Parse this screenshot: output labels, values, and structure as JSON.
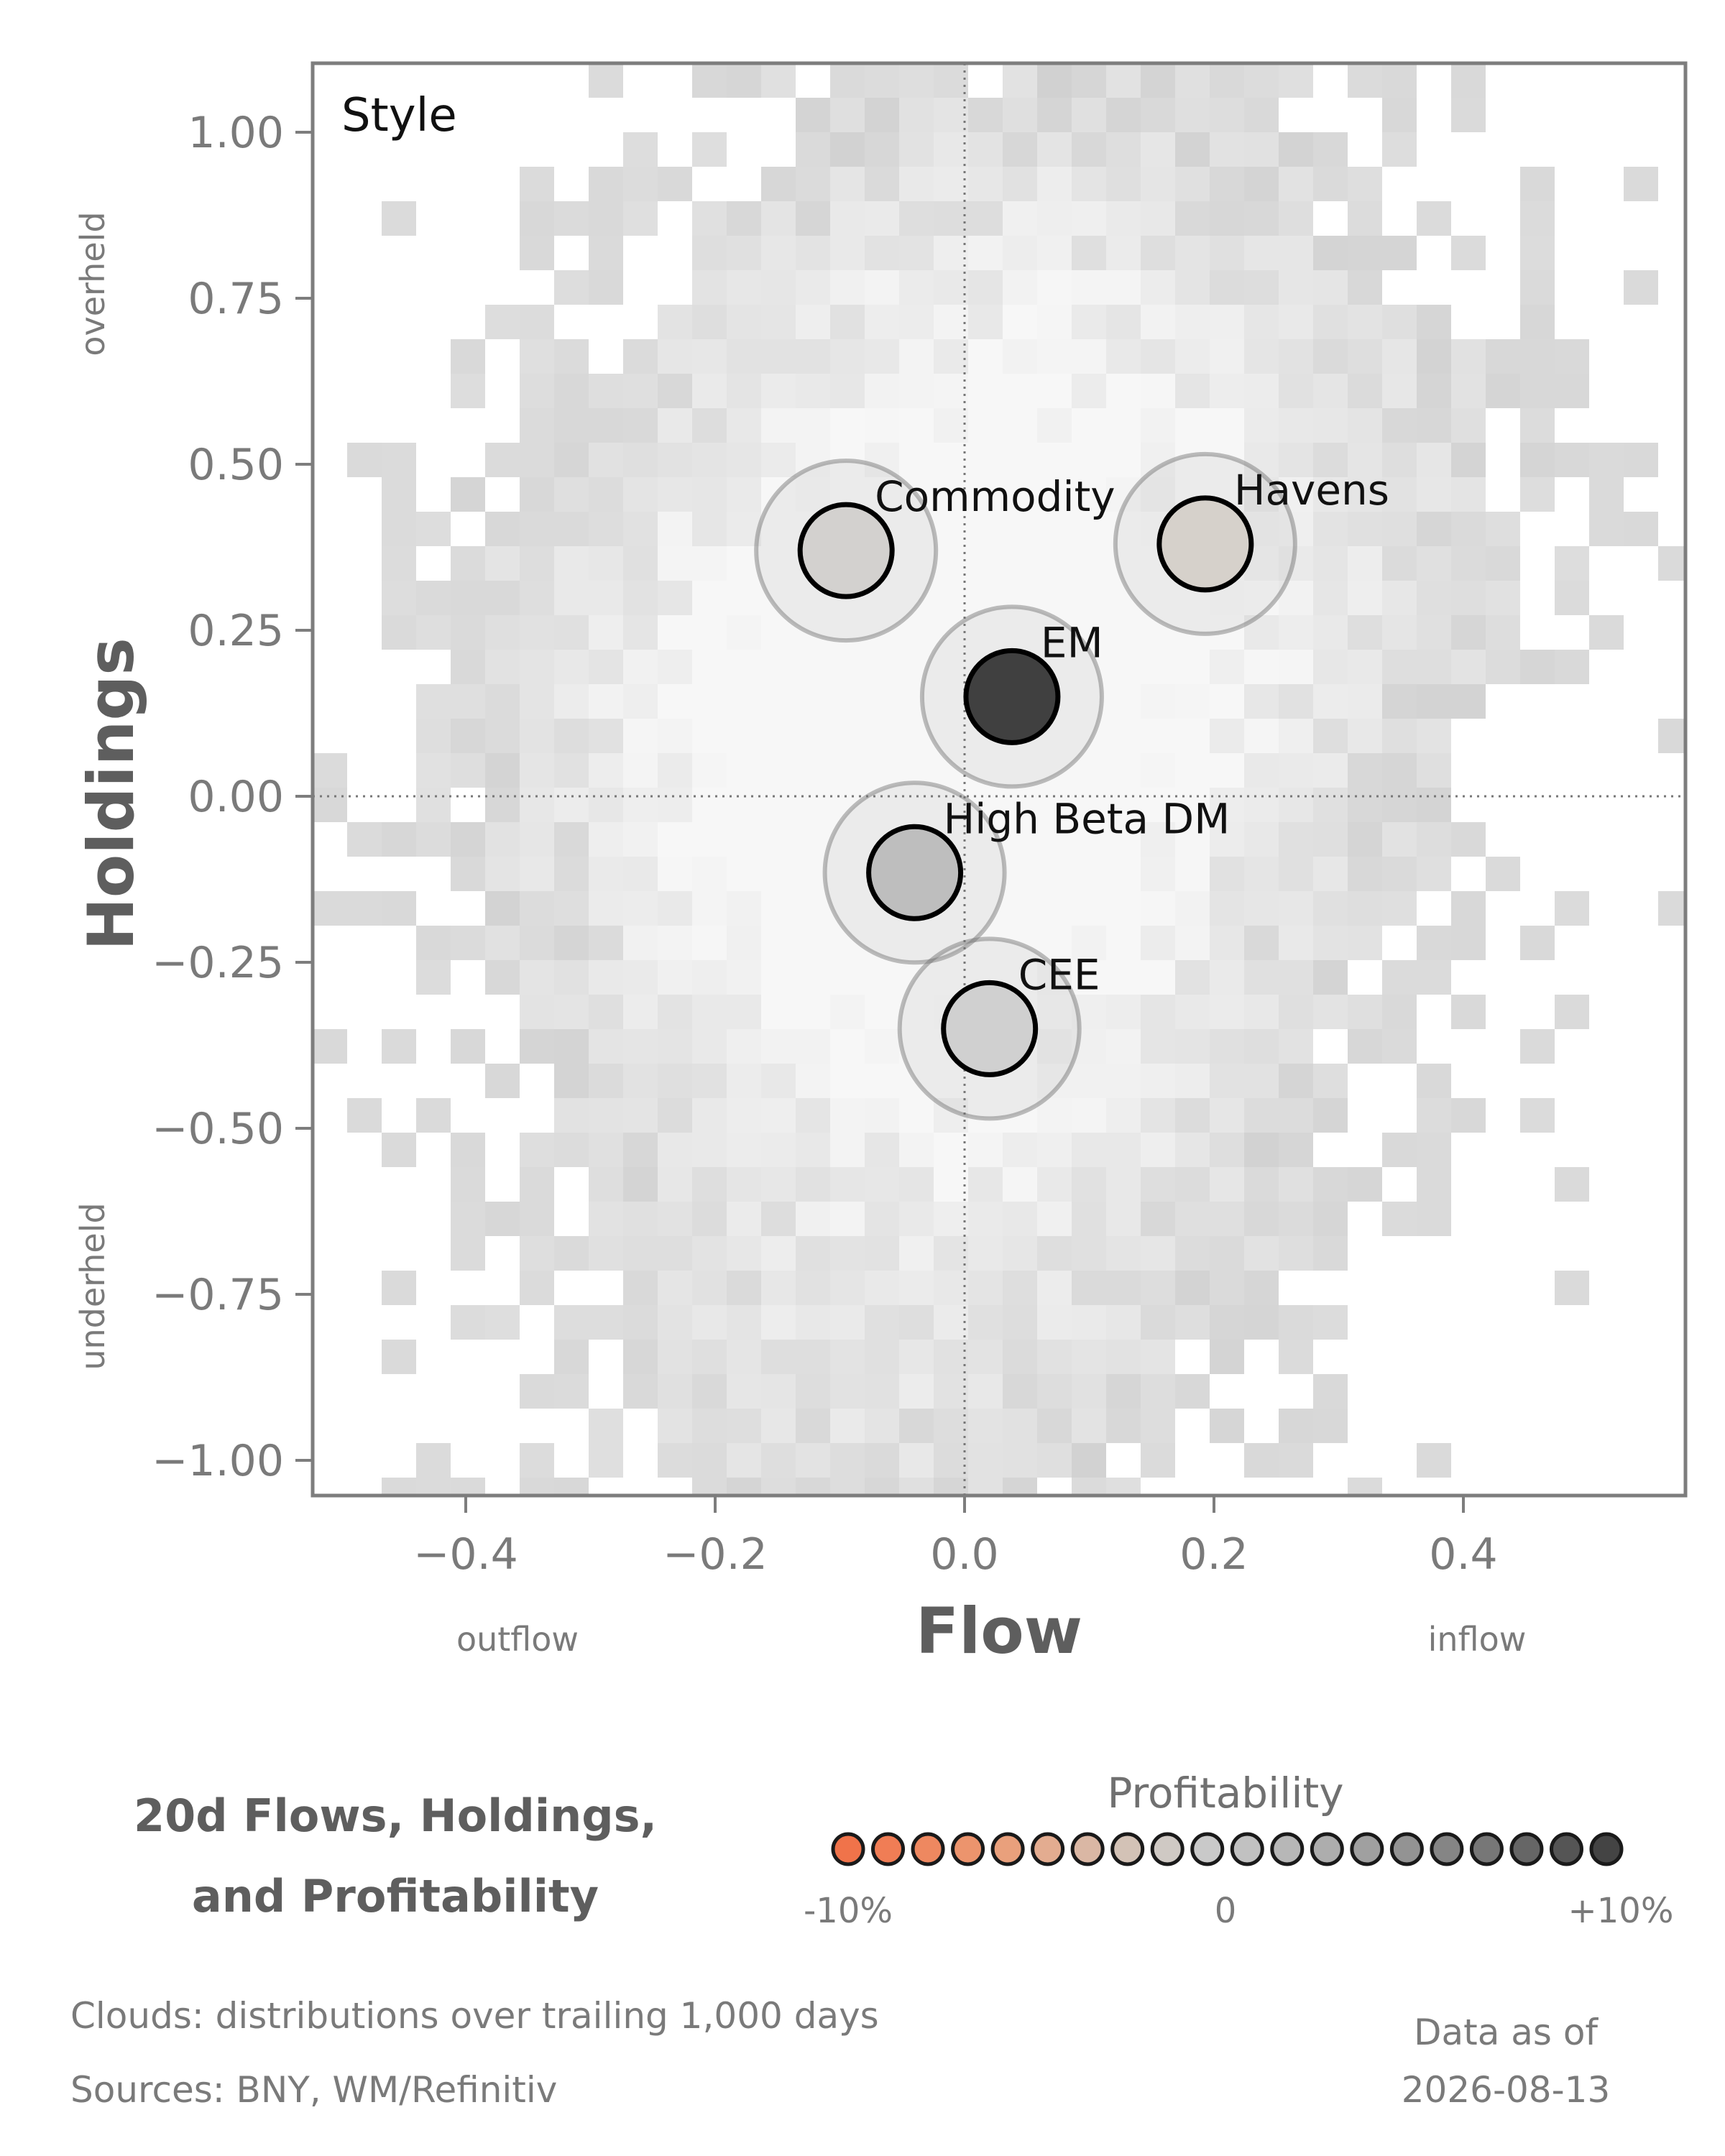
{
  "chart_data": {
    "type": "scatter",
    "panel_label": "Style",
    "xlabel": "Flow",
    "ylabel": "Holdings",
    "xlim": [
      -0.52,
      0.575
    ],
    "ylim": [
      -1.075,
      1.08
    ],
    "x_ticks": [
      -0.4,
      -0.2,
      0.0,
      0.2,
      0.4
    ],
    "x_tick_labels": [
      "−0.4",
      "−0.2",
      "0.0",
      "0.2",
      "0.4"
    ],
    "y_ticks": [
      1.0,
      0.75,
      0.5,
      0.25,
      0.0,
      -0.25,
      -0.5,
      -0.75,
      -1.0
    ],
    "y_tick_labels": [
      "1.00",
      "0.75",
      "0.50",
      "0.25",
      "0.00",
      "−0.25",
      "−0.50",
      "−0.75",
      "−1.00"
    ],
    "x_side_labels": {
      "negative": "outflow",
      "positive": "inflow"
    },
    "y_side_labels": {
      "positive": "overheld",
      "negative": "underheld"
    },
    "reference_lines": {
      "x": 0.0,
      "y": 0.0,
      "style": "dotted"
    },
    "background": "2D histogram clouds (grey) of trailing 1,000-day flow/holdings distributions",
    "points": [
      {
        "label": "Commodity",
        "flow": -0.095,
        "holdings": 0.37,
        "fill": "#d3d1cf"
      },
      {
        "label": "Havens",
        "flow": 0.193,
        "holdings": 0.38,
        "fill": "#d6d1cb"
      },
      {
        "label": "EM",
        "flow": 0.038,
        "holdings": 0.15,
        "fill": "#404040"
      },
      {
        "label": "High Beta DM",
        "flow": -0.04,
        "holdings": -0.115,
        "fill": "#bebebe"
      },
      {
        "label": "CEE",
        "flow": 0.02,
        "holdings": -0.35,
        "fill": "#d0d0d0"
      }
    ],
    "legend": {
      "title": "Profitability",
      "tick_labels": [
        "-10%",
        "0",
        "+10%"
      ],
      "colors": [
        "#f0734a",
        "#f07d55",
        "#ee8860",
        "#ec946d",
        "#e9a07c",
        "#e3ac90",
        "#dab7a4",
        "#d3c2b6",
        "#cfc9c4",
        "#c9c9c9",
        "#c1c1c1",
        "#b7b7b7",
        "#adadad",
        "#a0a0a0",
        "#939393",
        "#858585",
        "#777777",
        "#666666",
        "#555555",
        "#444444"
      ]
    }
  },
  "caption": {
    "title_line1": "20d Flows, Holdings,",
    "title_line2": "and Profitability",
    "clouds_note": "Clouds:  distributions over trailing 1,000 days",
    "sources_note": "Sources:  BNY, WM/Refinitiv",
    "data_as_of_label": "Data as of",
    "data_as_of_date": "2026-08-13"
  },
  "colors": {
    "axis": "#7d7d7d",
    "cloud_light": "#f7f7f7",
    "cloud_dark": "#c8c8c8"
  }
}
